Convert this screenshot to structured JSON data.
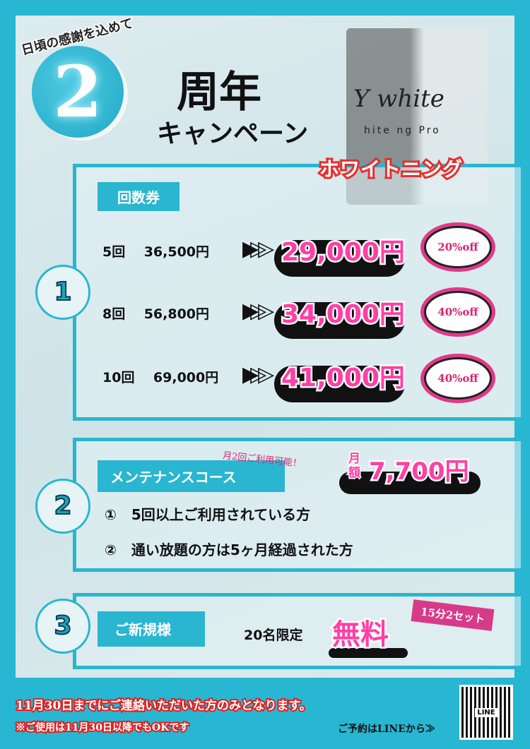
{
  "header": {
    "arc_text": "日頃の感謝を込めて",
    "anniversary_number": "2",
    "title": "周年",
    "subtitle": "キャンペーン",
    "logo": {
      "script": "Y white",
      "tagline": "hite  ng Pro"
    },
    "banner": "ホワイトニング"
  },
  "section1": {
    "number": "1",
    "label": "回数券",
    "rows": [
      {
        "count": "5回",
        "regular": "36,500円",
        "sale": "29,000円",
        "discount": "20%off"
      },
      {
        "count": "8回",
        "regular": "56,800円",
        "sale": "34,000円",
        "discount": "40%off"
      },
      {
        "count": "10回",
        "regular": "69,000円",
        "sale": "41,000円",
        "discount": "40%off"
      }
    ],
    "arrow": "▶▷▷"
  },
  "section2": {
    "number": "2",
    "label": "メンテナンスコース",
    "note": "月2回ご利用可能！",
    "monthly_label": "月額",
    "price": "7,700円",
    "conditions": [
      {
        "mark": "①",
        "text": "5回以上ご利用されている方"
      },
      {
        "mark": "②",
        "text": "通い放題の方は5ヶ月経過された方"
      }
    ]
  },
  "section3": {
    "number": "3",
    "label": "ご新規様",
    "limit": "20名限定",
    "free": "無料",
    "tag": "15分2セット"
  },
  "footer": {
    "deadline": "11月30日までにご連絡いただいた方のみとなります。",
    "usage": "※ご使用は11月30日以降でもOKです",
    "line_cta": "ご予約はLINEから≫",
    "qr_label": "LINE"
  },
  "colors": {
    "accent": "#2ab5d0",
    "pink": "#ff3fa6",
    "red": "#e02020"
  }
}
